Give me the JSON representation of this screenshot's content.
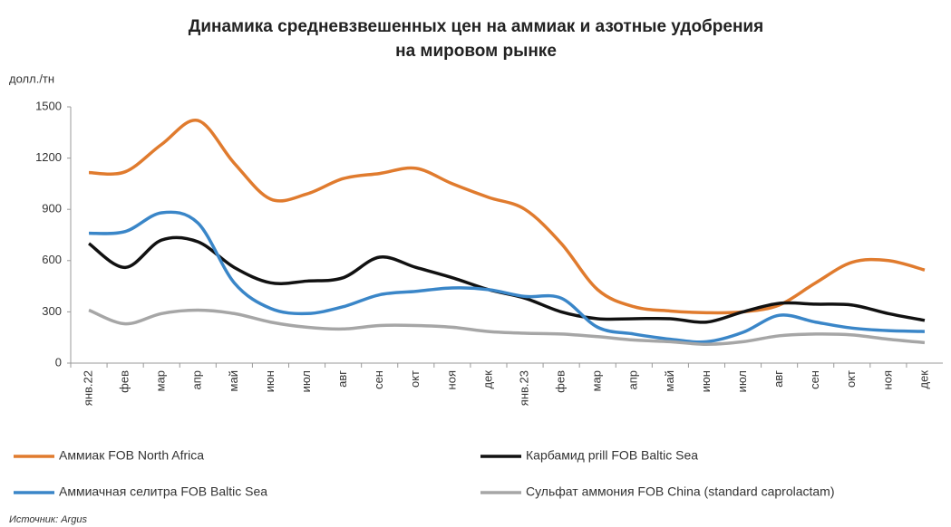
{
  "chart_data": {
    "type": "line",
    "title": "Динамика средневзвешенных цен на аммиак и азотные удобрения",
    "subtitle": "на мировом рынке",
    "y_label": "долл./тн",
    "source": "Источник: Argus",
    "categories": [
      "янв.22",
      "фев",
      "мар",
      "апр",
      "май",
      "июн",
      "июл",
      "авг",
      "сен",
      "окт",
      "ноя",
      "дек",
      "янв.23",
      "фев",
      "мар",
      "апр",
      "май",
      "июн",
      "июл",
      "авг",
      "сен",
      "окт",
      "ноя",
      "дек"
    ],
    "series": [
      {
        "name": "Аммиак FOB North Africa",
        "color": "#e07b2e",
        "values": [
          1115,
          1120,
          1280,
          1420,
          1170,
          960,
          990,
          1080,
          1110,
          1140,
          1050,
          970,
          900,
          700,
          430,
          330,
          305,
          295,
          300,
          340,
          470,
          590,
          600,
          545
        ]
      },
      {
        "name": "Карбамид prill FOB Baltic Sea",
        "color": "#111111",
        "values": [
          700,
          560,
          720,
          710,
          560,
          470,
          480,
          500,
          620,
          560,
          500,
          430,
          380,
          300,
          260,
          260,
          260,
          240,
          300,
          350,
          345,
          340,
          290,
          250
        ]
      },
      {
        "name": "Аммиачная селитра FOB Baltic Sea",
        "color": "#3a86c8",
        "values": [
          760,
          770,
          880,
          820,
          470,
          320,
          290,
          330,
          400,
          420,
          440,
          430,
          390,
          380,
          210,
          170,
          140,
          125,
          180,
          280,
          240,
          205,
          190,
          185
        ]
      },
      {
        "name": "Сульфат аммония FOB China (standard caprolactam)",
        "color": "#a6a6a6",
        "values": [
          310,
          230,
          290,
          310,
          290,
          240,
          210,
          200,
          220,
          220,
          210,
          185,
          175,
          170,
          155,
          135,
          125,
          110,
          125,
          160,
          170,
          165,
          140,
          120
        ]
      }
    ],
    "ylim": [
      0,
      1500
    ],
    "yticks": [
      0,
      300,
      600,
      900,
      1200,
      1500
    ],
    "grid": false
  }
}
